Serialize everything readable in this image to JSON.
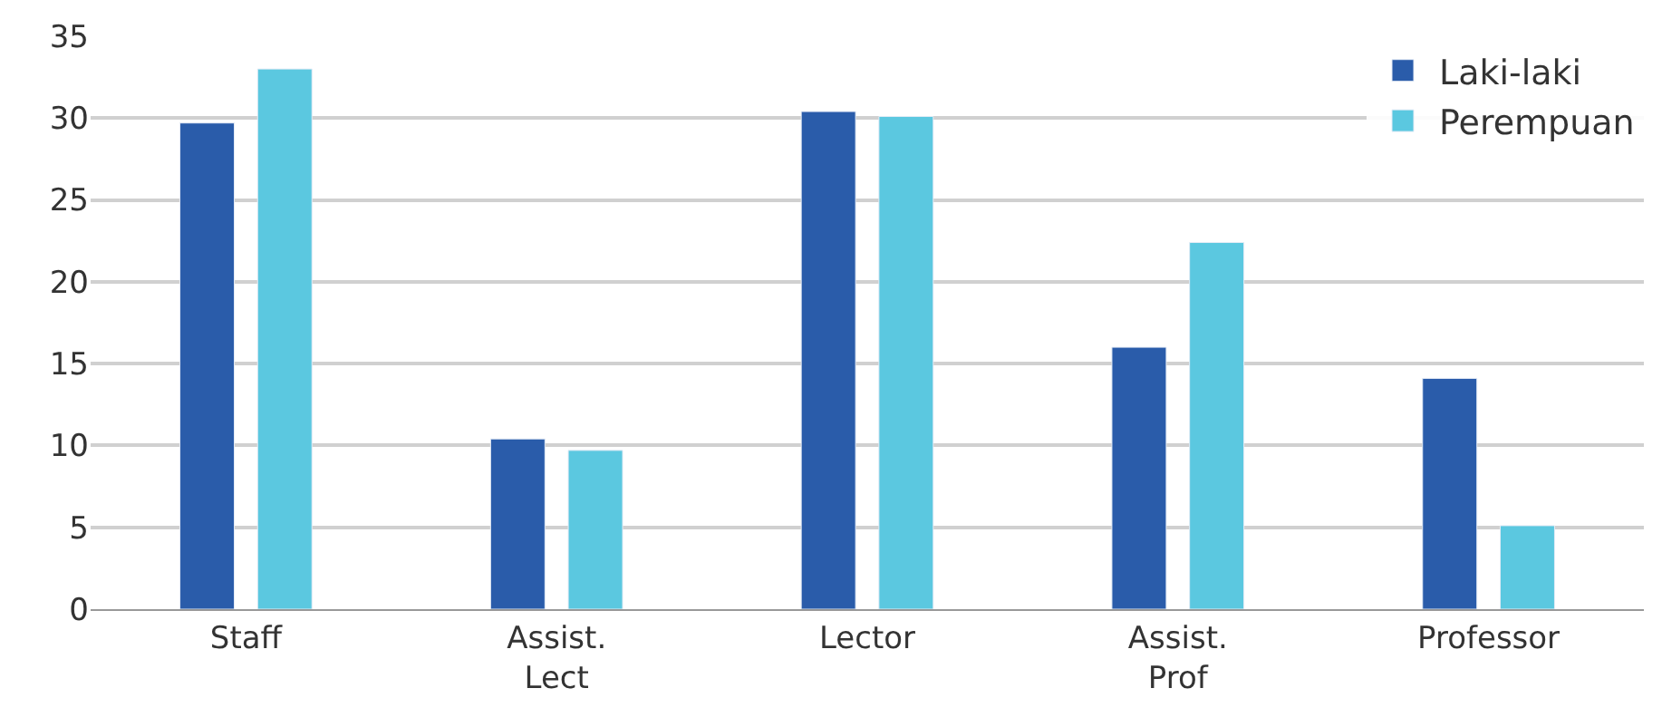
{
  "chart_data": {
    "type": "bar",
    "categories": [
      "Staff",
      "Assist.\nLect",
      "Lector",
      "Assist.\nProf",
      "Professor"
    ],
    "series": [
      {
        "name": "Laki-laki",
        "color": "#2a5caa",
        "values": [
          29.7,
          10.4,
          30.4,
          16.0,
          14.1
        ]
      },
      {
        "name": "Perempuan",
        "color": "#5bc8e0",
        "values": [
          33.0,
          9.7,
          30.1,
          22.4,
          5.1
        ]
      }
    ],
    "ylim": [
      0,
      35
    ],
    "yticks": [
      0,
      5,
      10,
      15,
      20,
      25,
      30,
      35
    ],
    "grid": "y",
    "legend": "top right"
  }
}
